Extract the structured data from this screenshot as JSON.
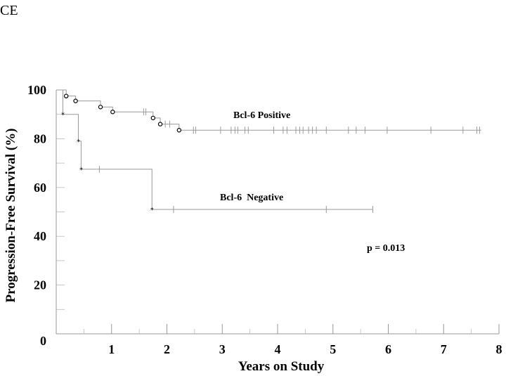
{
  "corner_text": "CE",
  "chart_data": {
    "type": "line",
    "xlabel": "Years on Study",
    "ylabel": "Progression-Free Survival (%)",
    "xlim": [
      0,
      8
    ],
    "ylim": [
      0,
      100
    ],
    "x_ticks": [
      "0",
      "1",
      "2",
      "3",
      "4",
      "5",
      "6",
      "7",
      "8"
    ],
    "y_ticks": [
      "0",
      "20",
      "40",
      "60",
      "80",
      "100"
    ],
    "annotation": "p = 0.013",
    "series": [
      {
        "name": "Bcl-6 Positive",
        "marker": "circle",
        "steps": [
          [
            0,
            100
          ],
          [
            0.18,
            97.5
          ],
          [
            0.35,
            95.5
          ],
          [
            0.8,
            93
          ],
          [
            1.02,
            91
          ],
          [
            1.75,
            88.5
          ],
          [
            1.88,
            86
          ],
          [
            2.22,
            83.5
          ],
          [
            7.68,
            83.5
          ]
        ],
        "events": [
          [
            0.18,
            97.5
          ],
          [
            0.35,
            95.5
          ],
          [
            0.8,
            93
          ],
          [
            1.02,
            91
          ],
          [
            1.75,
            88.5
          ],
          [
            1.88,
            86
          ],
          [
            2.22,
            83.5
          ]
        ],
        "censored": [
          1.58,
          1.62,
          1.97,
          2.05,
          2.48,
          2.52,
          2.97,
          3.16,
          3.23,
          3.28,
          3.41,
          3.47,
          3.93,
          4.1,
          4.17,
          4.33,
          4.4,
          4.46,
          4.56,
          4.63,
          4.7,
          4.88,
          5.28,
          5.42,
          5.58,
          5.98,
          6.77,
          7.35,
          7.6,
          7.65
        ]
      },
      {
        "name": "Bcl-6  Negative",
        "marker": "asterisk",
        "steps": [
          [
            0,
            100
          ],
          [
            0.12,
            90
          ],
          [
            0.4,
            79
          ],
          [
            0.45,
            67.5
          ],
          [
            1.73,
            51
          ],
          [
            5.72,
            51
          ]
        ],
        "events": [
          [
            0.12,
            90
          ],
          [
            0.4,
            79
          ],
          [
            0.45,
            67.5
          ],
          [
            1.73,
            51
          ]
        ],
        "censored": [
          0.78,
          2.12,
          4.88,
          5.72
        ]
      }
    ]
  }
}
